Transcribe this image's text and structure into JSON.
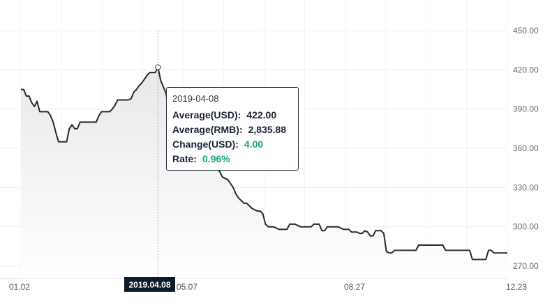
{
  "chart_data": {
    "type": "area",
    "y_ticks": [
      "450.00",
      "420.00",
      "390.00",
      "360.00",
      "330.00",
      "300.00",
      "270.00"
    ],
    "y_tick_values": [
      450,
      420,
      390,
      360,
      330,
      300,
      270
    ],
    "ylim": [
      262,
      450
    ],
    "x_ticks": [
      "01.02",
      "05.07",
      "08.27",
      "12.23"
    ],
    "grid": true,
    "series": [
      {
        "values": [
          405,
          405,
          400,
          400,
          395,
          392,
          396,
          388,
          388,
          388,
          388,
          385,
          380,
          372,
          365,
          365,
          365,
          365,
          375,
          378,
          375,
          375,
          380,
          380,
          380,
          380,
          380,
          380,
          380,
          385,
          388,
          388,
          388,
          388,
          390,
          393,
          397,
          397,
          397,
          397,
          397,
          398,
          403,
          405,
          408,
          410,
          413,
          416,
          418,
          418,
          418,
          422,
          412,
          407,
          402,
          390,
          380,
          370,
          362,
          358,
          360,
          363,
          365,
          368,
          370,
          370,
          368,
          360,
          358,
          355,
          352,
          350,
          348,
          345,
          342,
          338,
          337,
          336,
          333,
          330,
          325,
          322,
          320,
          318,
          318,
          316,
          314,
          313,
          312,
          312,
          310,
          302,
          300,
          300,
          300,
          299,
          298,
          298,
          298,
          298,
          302,
          302,
          302,
          301,
          300,
          300,
          300,
          300,
          300,
          302,
          302,
          302,
          297,
          297,
          300,
          300,
          300,
          300,
          300,
          299,
          298,
          298,
          298,
          296,
          296,
          296,
          295,
          295,
          297,
          296,
          293,
          293,
          297,
          297,
          297,
          295,
          281,
          280,
          280,
          282,
          282,
          282,
          282,
          282,
          282,
          282,
          282,
          282,
          286,
          286,
          286,
          286,
          286,
          286,
          286,
          286,
          286,
          286,
          282,
          282,
          282,
          282,
          282,
          282,
          282,
          282,
          282,
          282,
          275,
          275,
          275,
          275,
          275,
          275,
          282,
          282,
          280,
          280,
          280,
          280,
          280,
          280
        ]
      }
    ],
    "highlight": {
      "index": 51,
      "date": "2019.04.08"
    },
    "tooltip": {
      "date": "2019-04-08",
      "rows": [
        {
          "label": "Average(USD):",
          "value": "422.00",
          "positive": false
        },
        {
          "label": "Average(RMB):",
          "value": "2,835.88",
          "positive": false
        },
        {
          "label": "Change(USD):",
          "value": "4.00",
          "positive": true
        },
        {
          "label": "Rate:",
          "value": "0.96%",
          "positive": true
        }
      ]
    },
    "colors": {
      "line": "#1f2d24",
      "area_top": "#e8e8e8",
      "area_bottom": "#ffffff",
      "grid": "#eeeeee",
      "positive": "#1aa37a",
      "badge": "#0e1a2b"
    }
  }
}
